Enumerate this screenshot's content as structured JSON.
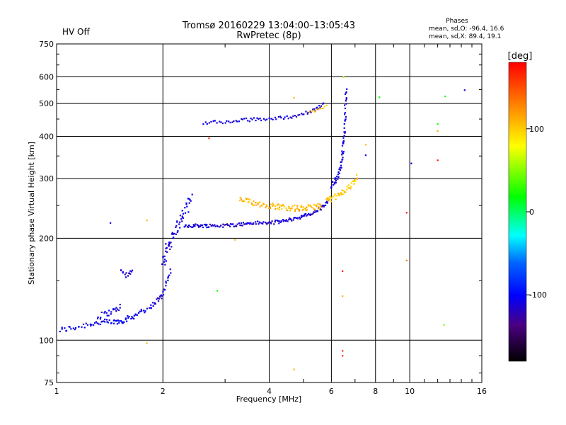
{
  "header": {
    "title": "Tromsø 20160229 13:04:00–13:05:43",
    "subtitle": "RwPretec (8p)",
    "status": "HV Off",
    "status_color": "#cc0000",
    "phases_title": "Phases",
    "phases_o": "mean, sd,O: -96.4, 16.6",
    "phases_x": "mean, sd,X:  89.4, 19.1"
  },
  "colorbar": {
    "unit": "[deg]",
    "range": [
      -180,
      180
    ],
    "ticks": [
      {
        "value": 100,
        "label": "100"
      },
      {
        "value": 0,
        "label": "0"
      },
      {
        "value": -100,
        "label": "-100"
      }
    ]
  },
  "chart_data": {
    "type": "scatter",
    "xlabel": "Frequency [MHz]",
    "ylabel": "Stationary phase Virtual Height [km]",
    "x_scale": "log2",
    "y_scale": "log",
    "xlim": [
      1,
      16
    ],
    "ylim": [
      75,
      750
    ],
    "x_ticks": [
      {
        "value": 1,
        "label": "1"
      },
      {
        "value": 2,
        "label": "2"
      },
      {
        "value": 4,
        "label": "4"
      },
      {
        "value": 6,
        "label": "6"
      },
      {
        "value": 8,
        "label": "8"
      },
      {
        "value": 10,
        "label": "10"
      },
      {
        "value": 16,
        "label": "16"
      }
    ],
    "x_minor_ticks": [
      3,
      5,
      7,
      9,
      11,
      12,
      13,
      14,
      15
    ],
    "y_ticks": [
      {
        "value": 75,
        "label": "75"
      },
      {
        "value": 100,
        "label": "100"
      },
      {
        "value": 200,
        "label": "200"
      },
      {
        "value": 300,
        "label": "300"
      },
      {
        "value": 400,
        "label": "400"
      },
      {
        "value": 500,
        "label": "500"
      },
      {
        "value": 600,
        "label": "600"
      },
      {
        "value": 750,
        "label": "750"
      }
    ],
    "grid": true,
    "segments": [
      {
        "x": [
          1.02,
          1.12,
          1.25,
          1.35,
          1.45,
          1.52,
          1.6,
          1.7
        ],
        "y": [
          107,
          109,
          112,
          113,
          113,
          114,
          116,
          120
        ],
        "phase": -105,
        "n": 70,
        "jitter": 0.02
      },
      {
        "x": [
          1.3,
          1.38,
          1.45,
          1.52
        ],
        "y": [
          117,
          120,
          122,
          126
        ],
        "phase": -110,
        "n": 22,
        "jitter": 0.02
      },
      {
        "x": [
          1.52,
          1.58,
          1.64
        ],
        "y": [
          160,
          155,
          162
        ],
        "phase": -110,
        "n": 14,
        "jitter": 0.02
      },
      {
        "x": [
          1.7,
          1.85,
          1.95,
          2.02,
          2.1
        ],
        "y": [
          120,
          126,
          132,
          142,
          160
        ],
        "phase": -110,
        "n": 40,
        "jitter": 0.02
      },
      {
        "x": [
          2.0,
          2.05,
          2.12,
          2.2,
          2.3,
          2.4
        ],
        "y": [
          165,
          185,
          200,
          218,
          238,
          262
        ],
        "phase": -110,
        "n": 60,
        "jitter": 0.035
      },
      {
        "x": [
          2.3,
          2.5,
          2.7,
          3.0,
          3.3,
          3.6,
          4.0,
          4.4,
          4.8,
          5.2,
          5.6,
          5.9
        ],
        "y": [
          218,
          218,
          218,
          218,
          220,
          222,
          222,
          225,
          230,
          235,
          245,
          258
        ],
        "phase": -112,
        "n": 160,
        "jitter": 0.012
      },
      {
        "x": [
          3.3,
          3.6,
          4.0,
          4.4,
          4.8,
          5.2,
          5.6
        ],
        "y": [
          260,
          255,
          250,
          247,
          245,
          246,
          250
        ],
        "phase": 108,
        "n": 100,
        "jitter": 0.02
      },
      {
        "x": [
          5.8,
          6.0,
          6.3,
          6.6,
          6.9,
          7.1
        ],
        "y": [
          258,
          262,
          268,
          278,
          290,
          305
        ],
        "phase": 100,
        "n": 45,
        "jitter": 0.02
      },
      {
        "x": [
          6.0,
          6.2,
          6.4,
          6.5,
          6.55,
          6.6
        ],
        "y": [
          285,
          300,
          330,
          380,
          450,
          560
        ],
        "phase": -108,
        "n": 65,
        "jitter": 0.02
      },
      {
        "x": [
          2.6,
          2.9,
          3.2,
          3.5,
          3.8,
          4.2,
          4.6,
          5.0,
          5.4,
          5.7
        ],
        "y": [
          440,
          440,
          444,
          448,
          450,
          452,
          458,
          466,
          478,
          500
        ],
        "phase": -110,
        "n": 75,
        "jitter": 0.012
      },
      {
        "x": [
          5.2,
          5.5,
          5.8
        ],
        "y": [
          470,
          480,
          490
        ],
        "phase": 105,
        "n": 10,
        "jitter": 0.01
      }
    ],
    "points": [
      {
        "x": 1.42,
        "y": 222,
        "phase": -110
      },
      {
        "x": 1.8,
        "y": 98,
        "phase": 108
      },
      {
        "x": 1.8,
        "y": 226,
        "phase": 108
      },
      {
        "x": 2.7,
        "y": 395,
        "phase": 160
      },
      {
        "x": 2.85,
        "y": 140,
        "phase": 20
      },
      {
        "x": 3.2,
        "y": 198,
        "phase": 110
      },
      {
        "x": 4.7,
        "y": 82,
        "phase": 108
      },
      {
        "x": 4.7,
        "y": 520,
        "phase": 108
      },
      {
        "x": 6.45,
        "y": 93,
        "phase": 165
      },
      {
        "x": 6.45,
        "y": 90,
        "phase": 165
      },
      {
        "x": 6.45,
        "y": 160,
        "phase": 170
      },
      {
        "x": 6.45,
        "y": 135,
        "phase": 108
      },
      {
        "x": 6.5,
        "y": 598,
        "phase": 60
      },
      {
        "x": 7.5,
        "y": 352,
        "phase": -110
      },
      {
        "x": 7.5,
        "y": 378,
        "phase": 108
      },
      {
        "x": 8.2,
        "y": 522,
        "phase": 20
      },
      {
        "x": 9.8,
        "y": 238,
        "phase": 170
      },
      {
        "x": 9.8,
        "y": 172,
        "phase": 130
      },
      {
        "x": 10.1,
        "y": 333,
        "phase": -110
      },
      {
        "x": 12.0,
        "y": 340,
        "phase": 170
      },
      {
        "x": 12.0,
        "y": 435,
        "phase": 20
      },
      {
        "x": 12.0,
        "y": 415,
        "phase": 108
      },
      {
        "x": 12.6,
        "y": 525,
        "phase": 20
      },
      {
        "x": 12.5,
        "y": 111,
        "phase": 50
      },
      {
        "x": 14.3,
        "y": 548,
        "phase": -110
      }
    ]
  }
}
